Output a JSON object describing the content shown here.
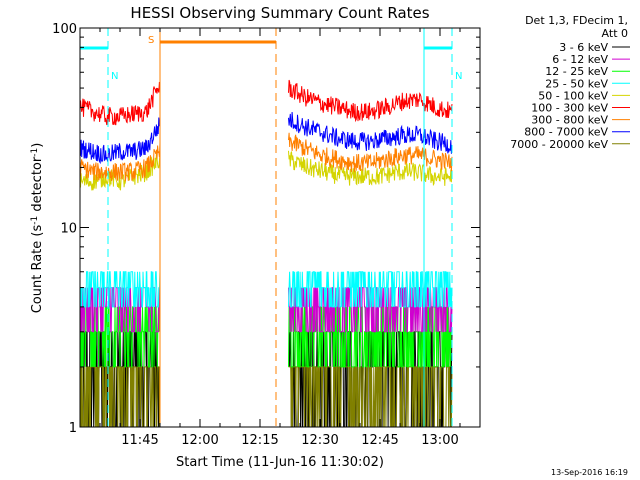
{
  "chart_data": {
    "type": "line",
    "title": "HESSI Observing Summary Count Rates",
    "xlabel": "Start Time (11-Jun-16 11:30:02)",
    "ylabel_main": "Count Rate (s",
    "ylabel_sup1": "-1",
    "ylabel_mid": " detector",
    "ylabel_sup2": "-1",
    "ylabel_end": ")",
    "y_scale": "log",
    "ylim": [
      1,
      100
    ],
    "x_range": [
      "11:30",
      "13:10"
    ],
    "x_ticks": [
      "11:45",
      "12:00",
      "12:15",
      "12:30",
      "12:45",
      "13:00"
    ],
    "y_ticks": [
      "1",
      "10",
      "100"
    ],
    "legend_header": [
      "Det 1,3, FDecim 1,",
      "Att 0"
    ],
    "footer_date": "13-Sep-2016 16:19",
    "flag_labels": {
      "saa": "S",
      "night": "N"
    },
    "series": [
      {
        "name": "3 - 6 keV",
        "color": "#000000",
        "segments": [
          {
            "t": [
              "11:30",
              "11:50"
            ],
            "level": "2 (noisy, 1-3)"
          },
          {
            "t": [
              "12:22",
              "13:03"
            ],
            "level": "2 (noisy, 1-3)"
          }
        ]
      },
      {
        "name": "6 - 12 keV",
        "color": "#d000d0",
        "segments": [
          {
            "t": [
              "11:30",
              "11:50"
            ],
            "level": "4 (noisy, 3-5)"
          },
          {
            "t": [
              "12:22",
              "13:03"
            ],
            "level": "4 (noisy, 3-5)"
          }
        ]
      },
      {
        "name": "12 - 25 keV",
        "color": "#00ff00",
        "segments": [
          {
            "t": [
              "11:30",
              "11:50"
            ],
            "level": "3 (noisy, 2-4)"
          },
          {
            "t": [
              "12:22",
              "13:03"
            ],
            "level": "3 (noisy, 2-4)"
          }
        ]
      },
      {
        "name": "25 - 50 keV",
        "color": "#00ffff",
        "segments": [
          {
            "t": [
              "11:30",
              "11:50"
            ],
            "level": "5 (noisy, 4-6)"
          },
          {
            "t": [
              "12:22",
              "13:03"
            ],
            "level": "5 (noisy, 4-6)"
          }
        ]
      },
      {
        "name": "50 - 100 keV",
        "color": "#d4d400",
        "segments": [
          {
            "t": [
              "11:30",
              "11:50"
            ],
            "y": [
              17,
              17,
              18,
              17,
              18,
              19,
              22
            ]
          },
          {
            "t": [
              "12:22",
              "13:03"
            ],
            "y": [
              22,
              20,
              19,
              18,
              18,
              18,
              19,
              19,
              18,
              18
            ]
          }
        ]
      },
      {
        "name": "100 - 300 keV",
        "color": "#ff0000",
        "segments": [
          {
            "t": [
              "11:30",
              "11:50"
            ],
            "y": [
              40,
              38,
              36,
              36,
              37,
              38,
              52
            ]
          },
          {
            "t": [
              "12:22",
              "13:03"
            ],
            "y": [
              50,
              45,
              42,
              40,
              38,
              38,
              40,
              43,
              44,
              40,
              38
            ]
          }
        ]
      },
      {
        "name": "300 - 800 keV",
        "color": "#ff8000",
        "segments": [
          {
            "t": [
              "11:30",
              "11:50"
            ],
            "y": [
              20,
              19,
              19,
              19,
              19,
              20,
              24
            ]
          },
          {
            "t": [
              "12:22",
              "13:03"
            ],
            "y": [
              27,
              25,
              23,
              22,
              21,
              21,
              22,
              23,
              23,
              22,
              21
            ]
          }
        ]
      },
      {
        "name": "800 - 7000 keV",
        "color": "#0000ff",
        "segments": [
          {
            "t": [
              "11:30",
              "11:50"
            ],
            "y": [
              25,
              24,
              23,
              24,
              24,
              25,
              33
            ]
          },
          {
            "t": [
              "12:22",
              "13:03"
            ],
            "y": [
              35,
              32,
              30,
              28,
              27,
              27,
              28,
              29,
              29,
              27,
              26
            ]
          }
        ]
      },
      {
        "name": "7000 - 20000 keV",
        "color": "#808000",
        "segments": [
          {
            "t": [
              "11:30",
              "11:50"
            ],
            "level": "2 (noisy, 1-2)"
          },
          {
            "t": [
              "12:22",
              "13:03"
            ],
            "level": "2 (noisy, 1-2)"
          }
        ]
      }
    ],
    "flags": [
      {
        "label": "S",
        "type": "SAA",
        "color": "#ff8000",
        "t": [
          "11:50",
          "12:19"
        ]
      },
      {
        "label": "N",
        "type": "Night",
        "color": "#00ffff",
        "t": [
          "11:30",
          "11:37"
        ]
      },
      {
        "label": "N",
        "type": "Night",
        "color": "#00ffff",
        "t": [
          "12:56",
          "13:03"
        ]
      }
    ]
  },
  "colors": {
    "background": "#ffffff",
    "axis": "#000000"
  }
}
